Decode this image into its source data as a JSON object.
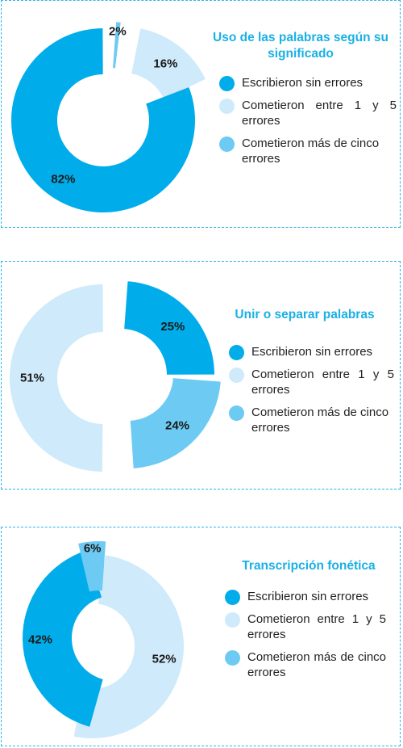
{
  "colors": {
    "sin_errores": "#00adea",
    "entre_1_y_5": "#cfeafa",
    "mas_de_cinco": "#6ccaf3",
    "title": "#1ab0e5",
    "border": "#29b5e6"
  },
  "chart_data": [
    {
      "type": "pie",
      "title": "Uso de las palabras según su significado",
      "series": [
        {
          "label": "Escribieron sin errores",
          "value": 82,
          "display": "82%"
        },
        {
          "label": "Cometieron entre 1 y 5 errores",
          "value": 16,
          "display": "16%"
        },
        {
          "label": "Cometieron más de cinco errores",
          "value": 2,
          "display": "2%"
        }
      ]
    },
    {
      "type": "pie",
      "title": "Unir o separar palabras",
      "series": [
        {
          "label": "Escribieron sin errores",
          "value": 25,
          "display": "25%"
        },
        {
          "label": "Cometieron entre 1 y 5 errores",
          "value": 51,
          "display": "51%"
        },
        {
          "label": "Cometieron más de cinco errores",
          "value": 24,
          "display": "24%"
        }
      ]
    },
    {
      "type": "pie",
      "title": "Transcripción fonética",
      "series": [
        {
          "label": "Escribieron sin errores",
          "value": 42,
          "display": "42%"
        },
        {
          "label": "Cometieron entre 1 y 5 errores",
          "value": 52,
          "display": "52%"
        },
        {
          "label": "Cometieron más de cinco errores",
          "value": 6,
          "display": "6%"
        }
      ]
    }
  ]
}
